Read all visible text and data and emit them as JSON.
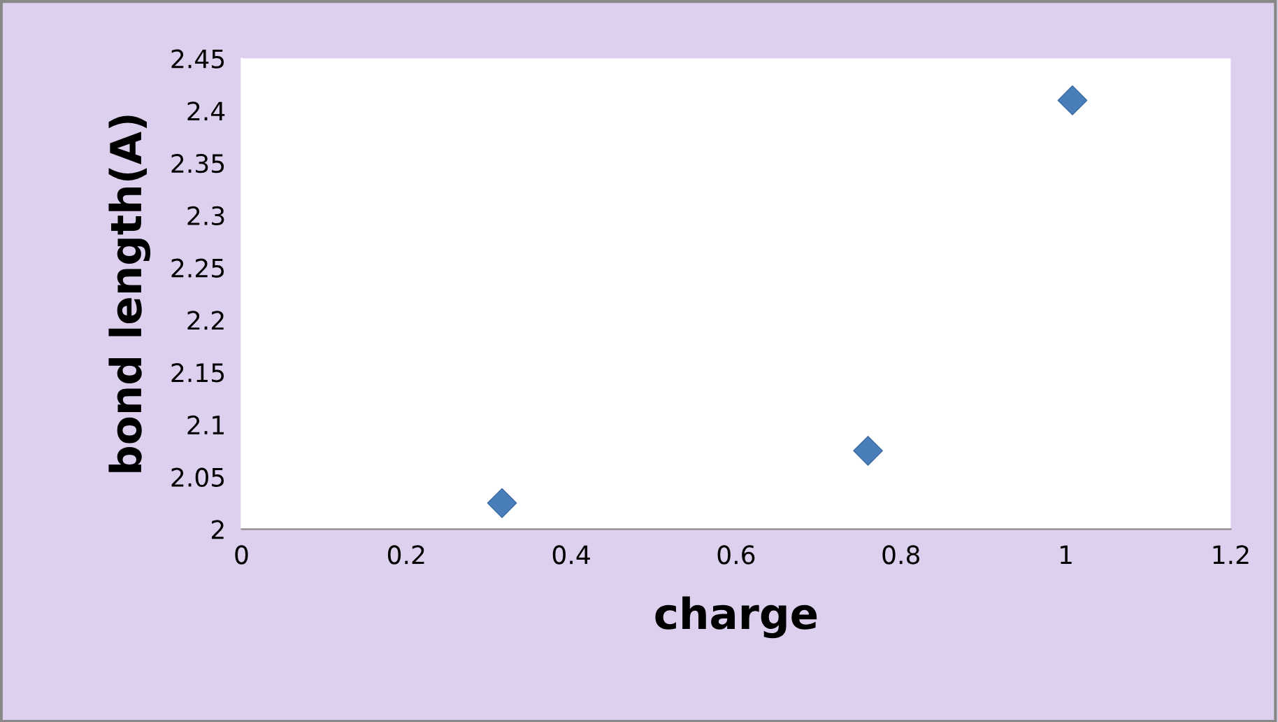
{
  "chart_data": {
    "type": "scatter",
    "xlabel": "charge",
    "ylabel": "bond length(A)",
    "series": [
      {
        "color": "#4a7ebb",
        "x": [
          0.316,
          0.76,
          1.008
        ],
        "values": [
          2.025,
          2.075,
          2.41
        ]
      }
    ],
    "marker": "diamond",
    "xlim": [
      0,
      1.2
    ],
    "xticks": [
      0,
      0.2,
      0.4,
      0.6,
      0.8,
      1,
      1.2
    ],
    "ylim": [
      2,
      2.45
    ],
    "yticks": [
      2,
      2.05,
      2.1,
      2.15,
      2.2,
      2.25,
      2.3,
      2.35,
      2.4,
      2.45
    ],
    "grid": false,
    "legend": false
  }
}
